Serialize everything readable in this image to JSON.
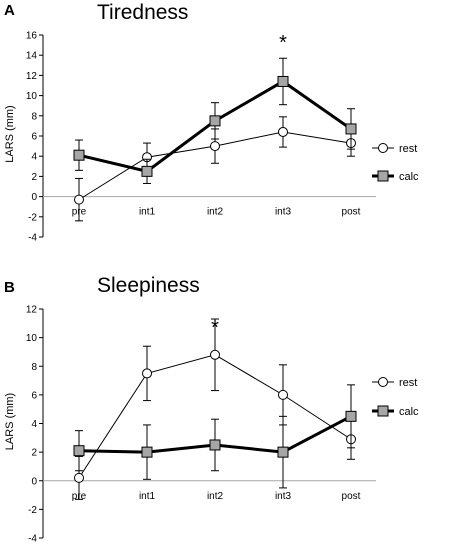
{
  "chart_data": [
    {
      "type": "line",
      "panel": "A",
      "title": "Tiredness",
      "ylabel": "LARS (mm)",
      "xlabel": "",
      "categories": [
        "pre",
        "int1",
        "int2",
        "int3",
        "post"
      ],
      "ylim": [
        -4,
        16
      ],
      "yticks": [
        -4,
        -2,
        0,
        2,
        4,
        6,
        8,
        10,
        12,
        14,
        16
      ],
      "grid": false,
      "legend_position": "right",
      "significance": {
        "category": "int3",
        "label": "*"
      },
      "series": [
        {
          "name": "rest",
          "marker": "open-circle",
          "line": "thin",
          "values": [
            -0.3,
            3.9,
            5.0,
            6.4,
            5.3
          ],
          "errors": [
            2.1,
            1.4,
            1.7,
            1.5,
            1.3
          ]
        },
        {
          "name": "calc",
          "marker": "gray-square",
          "line": "thick",
          "values": [
            4.1,
            2.5,
            7.5,
            11.4,
            6.7
          ],
          "errors": [
            1.5,
            1.2,
            1.8,
            2.3,
            2.0
          ]
        }
      ]
    },
    {
      "type": "line",
      "panel": "B",
      "title": "Sleepiness",
      "ylabel": "LARS (mm)",
      "xlabel": "",
      "categories": [
        "pre",
        "int1",
        "int2",
        "int3",
        "post"
      ],
      "ylim": [
        -4,
        12
      ],
      "yticks": [
        -4,
        -2,
        0,
        2,
        4,
        6,
        8,
        10,
        12
      ],
      "grid": false,
      "legend_position": "right",
      "significance": {
        "category": "int2",
        "label": "*"
      },
      "series": [
        {
          "name": "rest",
          "marker": "open-circle",
          "line": "thin",
          "values": [
            0.2,
            7.5,
            8.8,
            6.0,
            2.9
          ],
          "errors": [
            1.5,
            1.9,
            2.5,
            2.1,
            1.4
          ]
        },
        {
          "name": "calc",
          "marker": "gray-square",
          "line": "thick",
          "values": [
            2.1,
            2.0,
            2.5,
            2.0,
            4.5
          ],
          "errors": [
            1.4,
            1.9,
            1.8,
            2.5,
            2.2
          ]
        }
      ]
    }
  ],
  "colors": {
    "axis": "#000000",
    "calc_fill": "#a6a6a6",
    "rest_fill": "#ffffff",
    "zero_line": "#a6a6a6"
  }
}
